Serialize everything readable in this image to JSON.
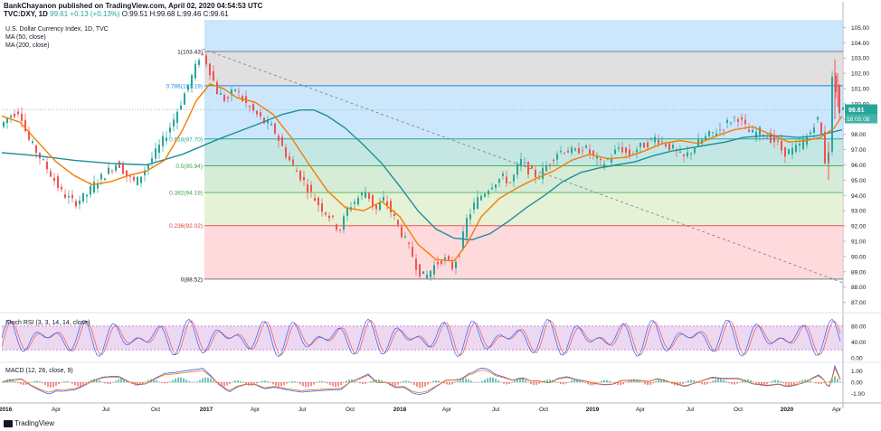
{
  "header": {
    "publisher": "BankChayanon published on TradingView.com, April 02, 2020 04:54:53 UTC",
    "symbol": "TVC:DXY, 1D",
    "last": "99.61",
    "change": "+0.13 (+0.13%)",
    "ohlc": "O:99.51 H:99.68 L:99.46 C:99.61"
  },
  "chart_data": [
    {
      "type": "candlestick",
      "title": "U.S. Dollar Currency Index, 1D, TVC",
      "overlays": [
        "MA (50, close)",
        "MA (200, close)"
      ],
      "x_tick_labels": [
        "2016",
        "Apr",
        "Jul",
        "Oct",
        "2017",
        "Apr",
        "Jul",
        "Oct",
        "2018",
        "Apr",
        "Jul",
        "Oct",
        "2019",
        "Apr",
        "Jul",
        "Oct",
        "2020",
        "Apr"
      ],
      "y_tick_labels": [
        "105.00",
        "104.00",
        "103.00",
        "102.00",
        "101.00",
        "100.00",
        "99.00",
        "98.00",
        "97.00",
        "96.00",
        "95.00",
        "94.00",
        "93.00",
        "92.00",
        "91.00",
        "90.00",
        "89.00",
        "88.00",
        "87.00"
      ],
      "ylim": [
        86.5,
        105.5
      ],
      "last_price_label": "99.61",
      "countdown_label": "18:05:08",
      "fib_levels": [
        {
          "label": "1(103.43)",
          "value": 103.43
        },
        {
          "label": "0.786(101.19)",
          "value": 101.19
        },
        {
          "label": "0.618(97.70)",
          "value": 97.7
        },
        {
          "label": "0.5(95.94)",
          "value": 95.94
        },
        {
          "label": "0.382(94.19)",
          "value": 94.19
        },
        {
          "label": "0.236(92.02)",
          "value": 92.02
        },
        {
          "label": "0(88.52)",
          "value": 88.52
        }
      ],
      "price_path": [
        [
          0,
          98.5
        ],
        [
          10,
          99.2
        ],
        [
          22,
          99.6
        ],
        [
          30,
          97.8
        ],
        [
          42,
          96.7
        ],
        [
          55,
          95.5
        ],
        [
          68,
          94.2
        ],
        [
          82,
          93.5
        ],
        [
          95,
          94.0
        ],
        [
          105,
          94.8
        ],
        [
          118,
          95.5
        ],
        [
          130,
          96.2
        ],
        [
          140,
          95.3
        ],
        [
          150,
          94.8
        ],
        [
          162,
          95.9
        ],
        [
          172,
          96.8
        ],
        [
          182,
          97.8
        ],
        [
          192,
          99.0
        ],
        [
          205,
          100.8
        ],
        [
          215,
          102.2
        ],
        [
          222,
          103.4
        ],
        [
          230,
          102.5
        ],
        [
          240,
          100.8
        ],
        [
          250,
          100.2
        ],
        [
          260,
          101.0
        ],
        [
          270,
          100.1
        ],
        [
          280,
          99.5
        ],
        [
          292,
          98.8
        ],
        [
          302,
          98.4
        ],
        [
          315,
          96.8
        ],
        [
          325,
          95.8
        ],
        [
          335,
          95.0
        ],
        [
          345,
          94.0
        ],
        [
          355,
          93.2
        ],
        [
          365,
          92.6
        ],
        [
          375,
          91.7
        ],
        [
          385,
          93.2
        ],
        [
          395,
          93.8
        ],
        [
          405,
          94.3
        ],
        [
          415,
          93.0
        ],
        [
          425,
          93.8
        ],
        [
          435,
          92.6
        ],
        [
          445,
          91.4
        ],
        [
          455,
          90.2
        ],
        [
          462,
          89.1
        ],
        [
          470,
          88.6
        ],
        [
          480,
          89.4
        ],
        [
          490,
          89.9
        ],
        [
          500,
          89.3
        ],
        [
          508,
          90.3
        ],
        [
          516,
          92.4
        ],
        [
          525,
          93.5
        ],
        [
          535,
          94.2
        ],
        [
          545,
          94.8
        ],
        [
          555,
          95.2
        ],
        [
          565,
          94.8
        ],
        [
          575,
          96.3
        ],
        [
          585,
          95.6
        ],
        [
          595,
          95.2
        ],
        [
          605,
          96.0
        ],
        [
          615,
          96.8
        ],
        [
          625,
          97.0
        ],
        [
          635,
          96.8
        ],
        [
          645,
          97.2
        ],
        [
          655,
          96.6
        ],
        [
          665,
          96.0
        ],
        [
          675,
          96.5
        ],
        [
          685,
          97.2
        ],
        [
          695,
          96.6
        ],
        [
          705,
          97.1
        ],
        [
          715,
          97.4
        ],
        [
          725,
          97.8
        ],
        [
          735,
          97.4
        ],
        [
          745,
          97.0
        ],
        [
          755,
          96.4
        ],
        [
          765,
          97.0
        ],
        [
          775,
          97.6
        ],
        [
          785,
          98.0
        ],
        [
          795,
          98.3
        ],
        [
          805,
          98.8
        ],
        [
          815,
          99.2
        ],
        [
          822,
          98.6
        ],
        [
          830,
          98.0
        ],
        [
          840,
          98.2
        ],
        [
          850,
          97.8
        ],
        [
          858,
          97.5
        ],
        [
          866,
          96.8
        ],
        [
          875,
          96.9
        ],
        [
          885,
          97.3
        ],
        [
          895,
          98.0
        ],
        [
          903,
          99.2
        ],
        [
          910,
          97.5
        ],
        [
          914,
          95.0
        ],
        [
          918,
          99.0
        ],
        [
          921,
          102.9
        ],
        [
          924,
          101.0
        ],
        [
          927,
          99.2
        ],
        [
          929,
          99.61
        ]
      ],
      "ma50_path": [
        [
          0,
          99.2
        ],
        [
          20,
          98.8
        ],
        [
          40,
          97.5
        ],
        [
          60,
          96.2
        ],
        [
          80,
          95.3
        ],
        [
          100,
          94.7
        ],
        [
          120,
          94.9
        ],
        [
          140,
          95.3
        ],
        [
          160,
          95.6
        ],
        [
          180,
          96.3
        ],
        [
          200,
          98.3
        ],
        [
          215,
          100.2
        ],
        [
          230,
          101.3
        ],
        [
          245,
          101.0
        ],
        [
          260,
          100.4
        ],
        [
          280,
          100.1
        ],
        [
          300,
          99.3
        ],
        [
          320,
          97.8
        ],
        [
          340,
          96.0
        ],
        [
          360,
          94.3
        ],
        [
          380,
          93.2
        ],
        [
          400,
          93.0
        ],
        [
          420,
          93.6
        ],
        [
          440,
          92.6
        ],
        [
          460,
          90.8
        ],
        [
          480,
          89.8
        ],
        [
          500,
          89.7
        ],
        [
          515,
          90.9
        ],
        [
          530,
          92.6
        ],
        [
          550,
          93.8
        ],
        [
          570,
          94.5
        ],
        [
          590,
          95.1
        ],
        [
          610,
          95.6
        ],
        [
          630,
          96.3
        ],
        [
          650,
          96.7
        ],
        [
          670,
          96.4
        ],
        [
          690,
          96.5
        ],
        [
          710,
          96.9
        ],
        [
          730,
          97.4
        ],
        [
          750,
          97.6
        ],
        [
          770,
          97.4
        ],
        [
          790,
          97.9
        ],
        [
          810,
          98.3
        ],
        [
          830,
          98.5
        ],
        [
          850,
          98.0
        ],
        [
          870,
          97.5
        ],
        [
          890,
          97.6
        ],
        [
          905,
          97.8
        ],
        [
          920,
          98.4
        ],
        [
          929,
          99.2
        ]
      ],
      "ma200_path": [
        [
          0,
          96.8
        ],
        [
          40,
          96.6
        ],
        [
          80,
          96.3
        ],
        [
          120,
          96.1
        ],
        [
          160,
          96.0
        ],
        [
          200,
          96.7
        ],
        [
          240,
          97.7
        ],
        [
          280,
          98.6
        ],
        [
          310,
          99.3
        ],
        [
          330,
          99.6
        ],
        [
          345,
          99.6
        ],
        [
          360,
          99.2
        ],
        [
          380,
          98.4
        ],
        [
          400,
          97.3
        ],
        [
          420,
          96.1
        ],
        [
          440,
          94.6
        ],
        [
          460,
          93.0
        ],
        [
          480,
          91.8
        ],
        [
          500,
          91.2
        ],
        [
          520,
          91.1
        ],
        [
          540,
          91.5
        ],
        [
          560,
          92.3
        ],
        [
          580,
          93.2
        ],
        [
          600,
          94.0
        ],
        [
          620,
          94.9
        ],
        [
          640,
          95.5
        ],
        [
          660,
          95.8
        ],
        [
          680,
          96.0
        ],
        [
          700,
          96.2
        ],
        [
          720,
          96.6
        ],
        [
          740,
          96.9
        ],
        [
          760,
          97.1
        ],
        [
          780,
          97.3
        ],
        [
          800,
          97.5
        ],
        [
          820,
          97.8
        ],
        [
          840,
          97.9
        ],
        [
          860,
          97.9
        ],
        [
          880,
          97.8
        ],
        [
          900,
          97.9
        ],
        [
          915,
          98.1
        ],
        [
          929,
          98.3
        ]
      ]
    },
    {
      "type": "line",
      "title": "Stoch RSI (3, 3, 14, 14, close)",
      "y_tick_labels": [
        "80.00",
        "40.00",
        "0.00"
      ],
      "ylim": [
        -5,
        105
      ]
    },
    {
      "type": "histogram",
      "title": "MACD (12, 26, close, 9)",
      "y_tick_labels": [
        "1.00",
        "0.00",
        "-1.00"
      ],
      "ylim": [
        -1.6,
        1.6
      ]
    }
  ],
  "footer": {
    "brand": "TradingView"
  },
  "colors": {
    "up": "#26a69a",
    "down": "#ef5350",
    "ma50": "#f57c00",
    "ma200": "#1e8f9b",
    "stoch_k": "#2962ff",
    "stoch_d": "#ef5350",
    "stoch_band": "#e1bee7"
  }
}
